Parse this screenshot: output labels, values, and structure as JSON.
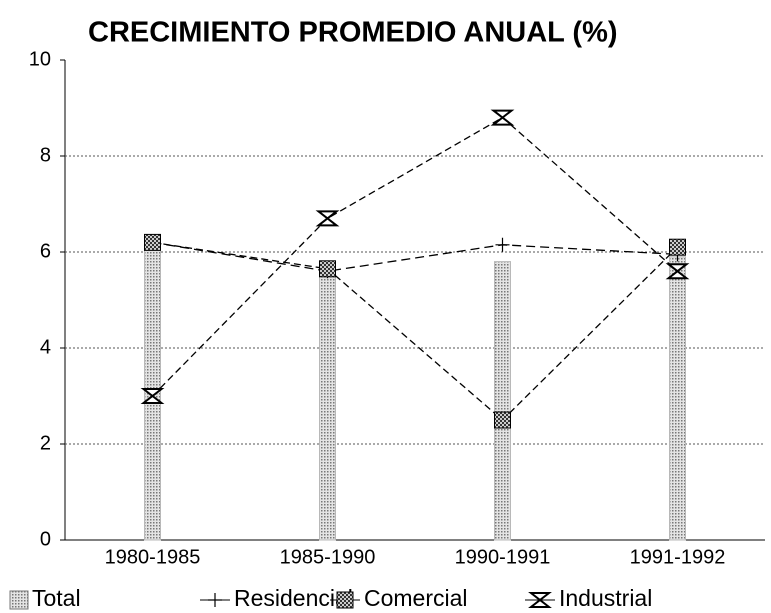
{
  "chart_data": {
    "type": "bar",
    "title": "CRECIMIENTO PROMEDIO ANUAL  (%)",
    "categories": [
      "1980-1985",
      "1985-1990",
      "1990-1991",
      "1991-1992"
    ],
    "series": [
      {
        "name": "Total",
        "type": "bar",
        "color": "#b8b8b8",
        "values": [
          6.2,
          5.6,
          5.8,
          5.9
        ]
      },
      {
        "name": "Residencial",
        "type": "line",
        "marker": "plus",
        "color": "#000000",
        "values": [
          6.2,
          5.6,
          6.15,
          5.95
        ]
      },
      {
        "name": "Comercial",
        "type": "line",
        "marker": "square",
        "color": "#000000",
        "values": [
          6.2,
          5.65,
          2.5,
          6.1
        ]
      },
      {
        "name": "Industrial",
        "type": "line",
        "marker": "hourglass",
        "color": "#000000",
        "values": [
          3.0,
          6.7,
          8.8,
          5.6
        ]
      }
    ],
    "ylim": [
      0,
      10
    ],
    "yticks": [
      0,
      2,
      4,
      6,
      8,
      10
    ],
    "grid": true,
    "legend": "bottom"
  }
}
